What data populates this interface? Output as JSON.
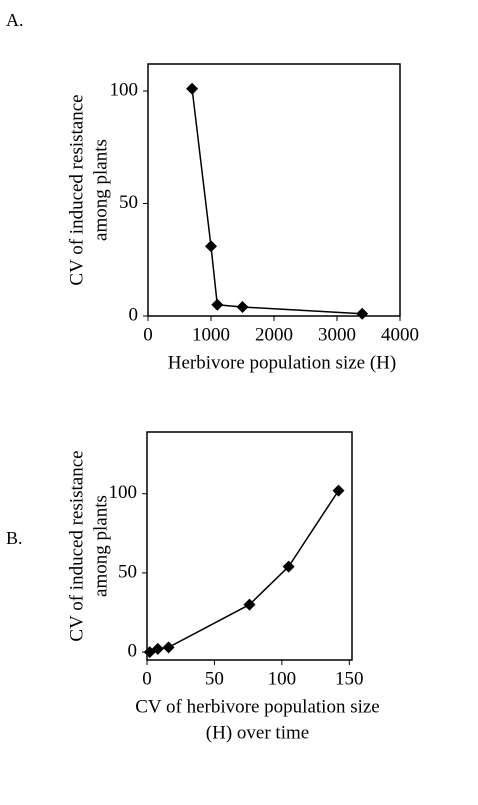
{
  "chart_data": [
    {
      "type": "line",
      "label": "A.",
      "x_label": [
        "Herbivore population size (H)"
      ],
      "y_label": [
        "CV of induced resistance",
        "among plants"
      ],
      "x": [
        700,
        1000,
        1100,
        1500,
        3400
      ],
      "values": [
        101,
        31,
        5,
        4,
        1
      ],
      "color": "#000000",
      "xlim": [
        0,
        4000
      ],
      "xticks": [
        0,
        1000,
        2000,
        3000,
        4000
      ],
      "ylim": [
        0,
        112
      ],
      "yticks": [
        0,
        50,
        100
      ]
    },
    {
      "type": "line",
      "label": "B.",
      "x_label": [
        "CV of herbivore population size",
        "(H) over time"
      ],
      "y_label": [
        "CV of induced resistance",
        "among plants"
      ],
      "x": [
        2,
        8,
        16,
        76,
        105,
        142
      ],
      "values": [
        0,
        2,
        3,
        30,
        54,
        102
      ],
      "color": "#000000",
      "xlim": [
        0,
        152
      ],
      "xticks": [
        0,
        50,
        100,
        150
      ],
      "ylim": [
        -5,
        139
      ],
      "yticks": [
        0,
        50,
        100
      ]
    }
  ]
}
